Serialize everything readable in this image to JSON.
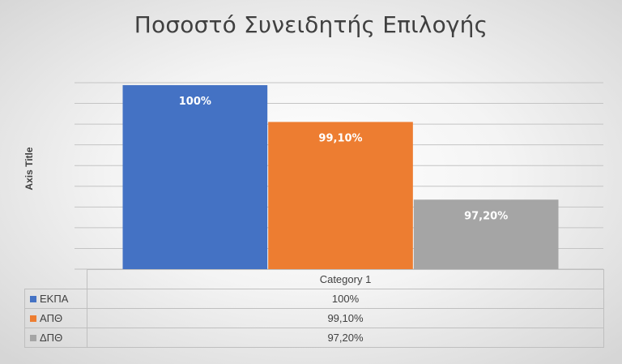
{
  "chart_data": {
    "type": "bar",
    "title": "Ποσοστό Συνειδητής Επιλογής",
    "xlabel": "",
    "ylabel": "Axis Title",
    "categories": [
      "Category 1"
    ],
    "series": [
      {
        "name": "ΕΚΠΑ",
        "values": [
          100
        ],
        "label": "100%",
        "color": "#4472C4"
      },
      {
        "name": "ΑΠΘ",
        "values": [
          99.1
        ],
        "label": "99,10%",
        "color": "#ED7D31"
      },
      {
        "name": "ΔΠΘ",
        "values": [
          97.2
        ],
        "label": "97,20%",
        "color": "#A5A5A5"
      }
    ],
    "ylim": [
      95.5,
      100.1
    ],
    "grid": true,
    "legend": "data-table"
  }
}
